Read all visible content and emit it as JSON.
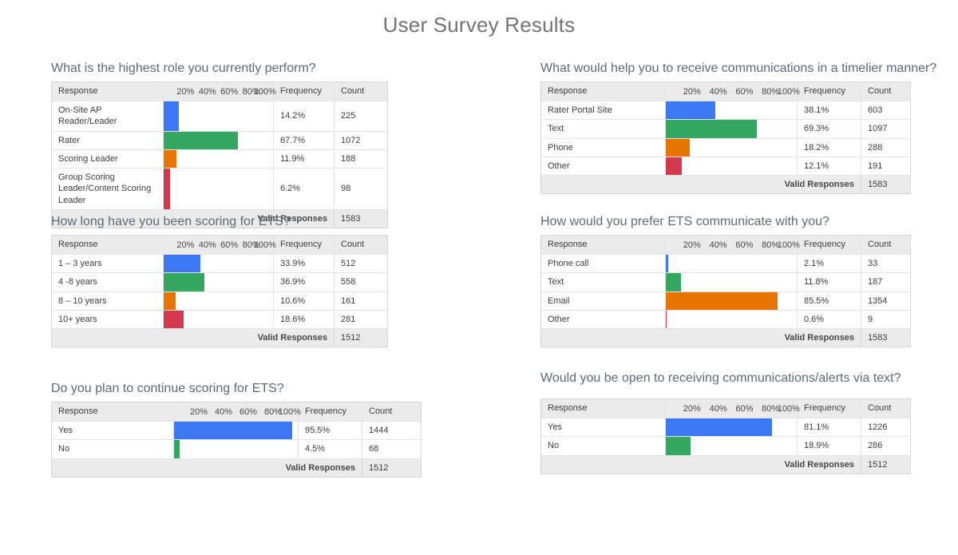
{
  "page": {
    "title": "User Survey Results"
  },
  "labels": {
    "response": "Response",
    "frequency": "Frequency",
    "count": "Count",
    "valid_responses": "Valid Responses",
    "ticks": [
      "20%",
      "40%",
      "60%",
      "80%",
      "100%"
    ]
  },
  "colors": {
    "bar_palette": [
      "#3b78f2",
      "#34a862",
      "#e87502",
      "#d23a4b"
    ],
    "question_title": "#5c6b78",
    "page_title": "#737373",
    "header_bg": "#ebebeb",
    "border": "#d6d6d6"
  },
  "chart_data": [
    {
      "type": "bar",
      "title": "What is the highest role you currently perform?",
      "categories": [
        "On-Site AP Reader/Leader",
        "Rater",
        "Scoring Leader",
        "Group Scoring Leader/Content Scoring Leader"
      ],
      "values": [
        14.2,
        67.7,
        11.9,
        6.2
      ],
      "frequencies": [
        "14.2%",
        "67.7%",
        "11.9%",
        "6.2%"
      ],
      "counts": [
        "225",
        "1072",
        "188",
        "98"
      ],
      "valid_responses": "1583",
      "xlim": [
        0,
        100
      ],
      "xticks": [
        "20%",
        "40%",
        "60%",
        "80%",
        "100%"
      ],
      "grid": false,
      "legend": "none"
    },
    {
      "type": "bar",
      "title": "What would help you to receive communications in a timelier manner?",
      "categories": [
        "Rater Portal Site",
        "Text",
        "Phone",
        "Other"
      ],
      "values": [
        38.1,
        69.3,
        18.2,
        12.1
      ],
      "frequencies": [
        "38.1%",
        "69.3%",
        "18.2%",
        "12.1%"
      ],
      "counts": [
        "603",
        "1097",
        "288",
        "191"
      ],
      "valid_responses": "1583",
      "xlim": [
        0,
        100
      ],
      "xticks": [
        "20%",
        "40%",
        "60%",
        "80%",
        "100%"
      ],
      "grid": false,
      "legend": "none"
    },
    {
      "type": "bar",
      "title": "How long have you been scoring for ETS?",
      "categories": [
        "1 – 3 years",
        "4 -8 years",
        "8 – 10 years",
        "10+ years"
      ],
      "values": [
        33.9,
        36.9,
        10.6,
        18.6
      ],
      "frequencies": [
        "33.9%",
        "36.9%",
        "10.6%",
        "18.6%"
      ],
      "counts": [
        "512",
        "558",
        "161",
        "281"
      ],
      "valid_responses": "1512",
      "xlim": [
        0,
        100
      ],
      "xticks": [
        "20%",
        "40%",
        "60%",
        "80%",
        "100%"
      ],
      "grid": false,
      "legend": "none"
    },
    {
      "type": "bar",
      "title": "How would you prefer ETS communicate with you?",
      "categories": [
        "Phone call",
        "Text",
        "Email",
        "Other"
      ],
      "values": [
        2.1,
        11.8,
        85.5,
        0.6
      ],
      "frequencies": [
        "2.1%",
        "11.8%",
        "85.5%",
        "0.6%"
      ],
      "counts": [
        "33",
        "187",
        "1354",
        "9"
      ],
      "valid_responses": "1583",
      "xlim": [
        0,
        100
      ],
      "xticks": [
        "20%",
        "40%",
        "60%",
        "80%",
        "100%"
      ],
      "grid": false,
      "legend": "none"
    },
    {
      "type": "bar",
      "title": "Do you plan to continue scoring for ETS?",
      "categories": [
        "Yes",
        "No"
      ],
      "values": [
        95.5,
        4.5
      ],
      "frequencies": [
        "95.5%",
        "4.5%"
      ],
      "counts": [
        "1444",
        "68"
      ],
      "valid_responses": "1512",
      "xlim": [
        0,
        100
      ],
      "xticks": [
        "20%",
        "40%",
        "60%",
        "80%",
        "100%"
      ],
      "grid": false,
      "legend": "none"
    },
    {
      "type": "bar",
      "title": "Would you be open to receiving communications/alerts via text?",
      "categories": [
        "Yes",
        "No"
      ],
      "values": [
        81.1,
        18.9
      ],
      "frequencies": [
        "81.1%",
        "18.9%"
      ],
      "counts": [
        "1226",
        "286"
      ],
      "valid_responses": "1512",
      "xlim": [
        0,
        100
      ],
      "xticks": [
        "20%",
        "40%",
        "60%",
        "80%",
        "100%"
      ],
      "grid": false,
      "legend": "none"
    }
  ]
}
